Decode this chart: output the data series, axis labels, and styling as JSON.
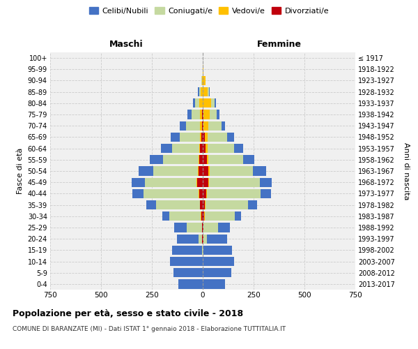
{
  "age_groups": [
    "0-4",
    "5-9",
    "10-14",
    "15-19",
    "20-24",
    "25-29",
    "30-34",
    "35-39",
    "40-44",
    "45-49",
    "50-54",
    "55-59",
    "60-64",
    "65-69",
    "70-74",
    "75-79",
    "80-84",
    "85-89",
    "90-94",
    "95-99",
    "100+"
  ],
  "birth_years": [
    "2013-2017",
    "2008-2012",
    "2003-2007",
    "1998-2002",
    "1993-1997",
    "1988-1992",
    "1983-1987",
    "1978-1982",
    "1973-1977",
    "1968-1972",
    "1963-1967",
    "1958-1962",
    "1953-1957",
    "1948-1952",
    "1943-1947",
    "1938-1942",
    "1933-1937",
    "1928-1932",
    "1923-1927",
    "1918-1922",
    "≤ 1917"
  ],
  "males": {
    "celibi": [
      120,
      145,
      160,
      145,
      105,
      60,
      35,
      50,
      55,
      65,
      70,
      65,
      55,
      45,
      30,
      18,
      10,
      5,
      2,
      0,
      0
    ],
    "coniugati": [
      0,
      0,
      0,
      5,
      20,
      75,
      155,
      215,
      270,
      255,
      220,
      175,
      135,
      100,
      70,
      42,
      22,
      8,
      2,
      0,
      0
    ],
    "vedovi": [
      0,
      0,
      0,
      0,
      0,
      0,
      1,
      1,
      2,
      2,
      2,
      3,
      4,
      6,
      8,
      12,
      15,
      10,
      4,
      1,
      0
    ],
    "divorziati": [
      0,
      0,
      0,
      0,
      2,
      4,
      8,
      12,
      18,
      28,
      22,
      18,
      13,
      8,
      4,
      2,
      1,
      0,
      0,
      0,
      0
    ]
  },
  "females": {
    "nubili": [
      110,
      140,
      155,
      138,
      100,
      55,
      32,
      45,
      50,
      58,
      62,
      55,
      45,
      35,
      20,
      12,
      6,
      3,
      1,
      0,
      0
    ],
    "coniugate": [
      0,
      0,
      0,
      5,
      18,
      72,
      148,
      208,
      265,
      250,
      215,
      170,
      130,
      95,
      65,
      35,
      18,
      6,
      2,
      0,
      0
    ],
    "vedove": [
      0,
      0,
      0,
      0,
      0,
      1,
      2,
      3,
      3,
      4,
      5,
      7,
      10,
      15,
      22,
      32,
      40,
      25,
      12,
      4,
      1
    ],
    "divorziate": [
      0,
      0,
      0,
      0,
      2,
      4,
      8,
      10,
      16,
      26,
      28,
      20,
      15,
      10,
      4,
      2,
      1,
      0,
      0,
      0,
      0
    ]
  },
  "color_celibi": "#4472c4",
  "color_coniugati": "#c5d9a0",
  "color_vedovi": "#ffc000",
  "color_divorziati": "#c0000c",
  "title": "Popolazione per età, sesso e stato civile - 2018",
  "subtitle": "COMUNE DI BARANZATE (MI) - Dati ISTAT 1° gennaio 2018 - Elaborazione TUTTITALIA.IT",
  "label_maschi": "Maschi",
  "label_femmine": "Femmine",
  "ylabel_left": "Fasce di età",
  "ylabel_right": "Anni di nascita",
  "xlim": 750,
  "xticks": [
    -750,
    -500,
    -250,
    0,
    250,
    500,
    750
  ],
  "bg_color": "#f0f0f0",
  "grid_color": "#cccccc"
}
